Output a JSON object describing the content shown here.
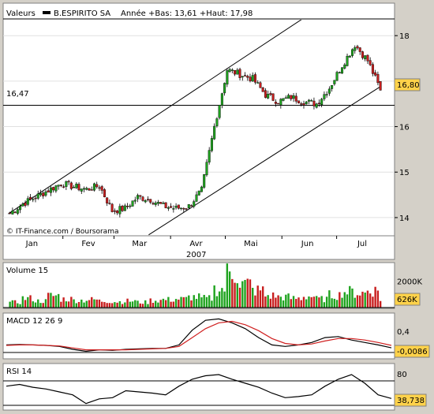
{
  "header": {
    "valeurs_label": "Valeurs",
    "stock_name": "B.ESPIRITO SA",
    "range_text": "Année +Bas: 13,61 +Haut: 17,98"
  },
  "watermark": "© IT-Finance.com / Boursorama",
  "year_label": "2007",
  "colors": {
    "panel_bg": "#ffffff",
    "frame_bg": "#d4d0c8",
    "up_candle": "#1fa31f",
    "down_candle": "#c81e1e",
    "badge_bg": "#ffd24a",
    "macd_signal": "#d02020"
  },
  "chart_data": [
    {
      "type": "candlestick",
      "title": "B.ESPIRITO SA",
      "x_tick_labels": [
        "Jan",
        "Fev",
        "Mar",
        "Avr",
        "Mai",
        "Jun",
        "Jul"
      ],
      "y_tick_labels": [
        "14",
        "15",
        "16",
        "17",
        "18"
      ],
      "ylim": [
        13.6,
        18.35
      ],
      "reference_line": {
        "value": 16.47,
        "label": "16,47"
      },
      "last_value": "16,80",
      "trend_channel": {
        "upper": [
          [
            "2007-01-02",
            14.08
          ],
          [
            "2007-05-01",
            17.25
          ],
          [
            "2007-07-25",
            19.5
          ]
        ],
        "lower": [
          [
            "2007-03-20",
            13.62
          ],
          [
            "2007-07-25",
            16.88
          ]
        ]
      },
      "closes_weekly": [
        [
          "2007-01-03",
          14.1
        ],
        [
          "2007-01-10",
          14.3
        ],
        [
          "2007-01-17",
          14.45
        ],
        [
          "2007-01-24",
          14.6
        ],
        [
          "2007-01-31",
          14.75
        ],
        [
          "2007-02-07",
          14.68
        ],
        [
          "2007-02-14",
          14.62
        ],
        [
          "2007-02-21",
          14.7
        ],
        [
          "2007-02-28",
          14.15
        ],
        [
          "2007-03-07",
          14.2
        ],
        [
          "2007-03-14",
          14.45
        ],
        [
          "2007-03-21",
          14.4
        ],
        [
          "2007-03-28",
          14.25
        ],
        [
          "2007-04-04",
          14.2
        ],
        [
          "2007-04-11",
          14.25
        ],
        [
          "2007-04-18",
          14.6
        ],
        [
          "2007-04-25",
          16.0
        ],
        [
          "2007-05-02",
          17.25
        ],
        [
          "2007-05-09",
          17.15
        ],
        [
          "2007-05-16",
          17.05
        ],
        [
          "2007-05-23",
          16.7
        ],
        [
          "2007-05-30",
          16.55
        ],
        [
          "2007-06-06",
          16.65
        ],
        [
          "2007-06-13",
          16.55
        ],
        [
          "2007-06-20",
          16.5
        ],
        [
          "2007-06-27",
          16.85
        ],
        [
          "2007-07-04",
          17.35
        ],
        [
          "2007-07-11",
          17.8
        ],
        [
          "2007-07-18",
          17.45
        ],
        [
          "2007-07-25",
          16.8
        ]
      ]
    },
    {
      "type": "bar",
      "title": "Volume 15",
      "y_tick_labels": [
        "2000K"
      ],
      "ylim": [
        0,
        3000
      ],
      "last_value": "626K",
      "values_k": [
        400,
        700,
        500,
        900,
        650,
        550,
        600,
        500,
        450,
        500,
        400,
        550,
        600,
        650,
        800,
        700,
        1400,
        2600,
        1800,
        1300,
        900,
        800,
        700,
        850,
        650,
        950,
        1200,
        1100,
        1300,
        626
      ]
    },
    {
      "type": "line",
      "title": "MACD 12 26 9",
      "y_tick_labels": [
        "0,4"
      ],
      "ylim": [
        -0.2,
        0.65
      ],
      "last_value": "-0,0086",
      "series": [
        {
          "values": [
            0.05,
            0.06,
            0.05,
            0.04,
            0.02,
            -0.04,
            -0.08,
            -0.05,
            -0.06,
            -0.04,
            -0.03,
            -0.02,
            -0.02,
            0.05,
            0.35,
            0.55,
            0.58,
            0.5,
            0.38,
            0.2,
            0.05,
            0.02,
            0.05,
            0.1,
            0.2,
            0.22,
            0.15,
            0.1,
            0.05,
            -0.0086
          ]
        },
        {
          "values": [
            0.04,
            0.05,
            0.05,
            0.04,
            0.03,
            -0.01,
            -0.05,
            -0.05,
            -0.05,
            -0.05,
            -0.04,
            -0.03,
            -0.02,
            0.02,
            0.2,
            0.38,
            0.5,
            0.53,
            0.46,
            0.34,
            0.18,
            0.08,
            0.05,
            0.07,
            0.13,
            0.18,
            0.18,
            0.15,
            0.1,
            0.04
          ]
        }
      ]
    },
    {
      "type": "line",
      "title": "RSI 14",
      "y_tick_labels": [
        "80"
      ],
      "ylim": [
        20,
        95
      ],
      "last_value": "38,738",
      "series": [
        {
          "values": [
            60,
            63,
            58,
            55,
            50,
            45,
            30,
            38,
            40,
            52,
            50,
            48,
            45,
            60,
            72,
            78,
            80,
            72,
            65,
            58,
            48,
            40,
            42,
            45,
            60,
            72,
            80,
            65,
            45,
            38.738
          ]
        }
      ]
    }
  ]
}
